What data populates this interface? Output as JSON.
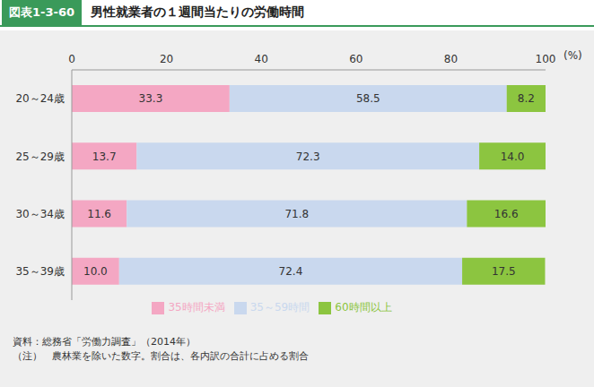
{
  "chart_data": {
    "type": "bar",
    "orientation": "horizontal",
    "stacked": true,
    "data_labels": true,
    "subtitle": "図表1-3-60",
    "title": "男性就業者の１週間当たりの労働時間",
    "xlabel": "(%)",
    "categories": [
      "20～24歳",
      "25～29歳",
      "30～34歳",
      "35～39歳"
    ],
    "series": [
      {
        "name": "35時間未満",
        "color": "#f4a7c3",
        "values": [
          33.3,
          13.7,
          11.6,
          10.0
        ]
      },
      {
        "name": "35～59時間",
        "color": "#c9d8ee",
        "values": [
          58.5,
          72.3,
          71.8,
          72.4
        ]
      },
      {
        "name": "60時間以上",
        "color": "#8cc540",
        "values": [
          8.2,
          14.0,
          16.6,
          17.5
        ]
      }
    ],
    "xlim": [
      0,
      100
    ],
    "xticks": [
      0,
      20,
      40,
      60,
      80,
      100
    ],
    "grid": false,
    "legend": "bottom",
    "annotations": [
      "資料：総務省「労働力調査」（2014年）",
      "（注）　農林業を除いた数字。割合は、各内訳の合計に占める割合"
    ]
  }
}
